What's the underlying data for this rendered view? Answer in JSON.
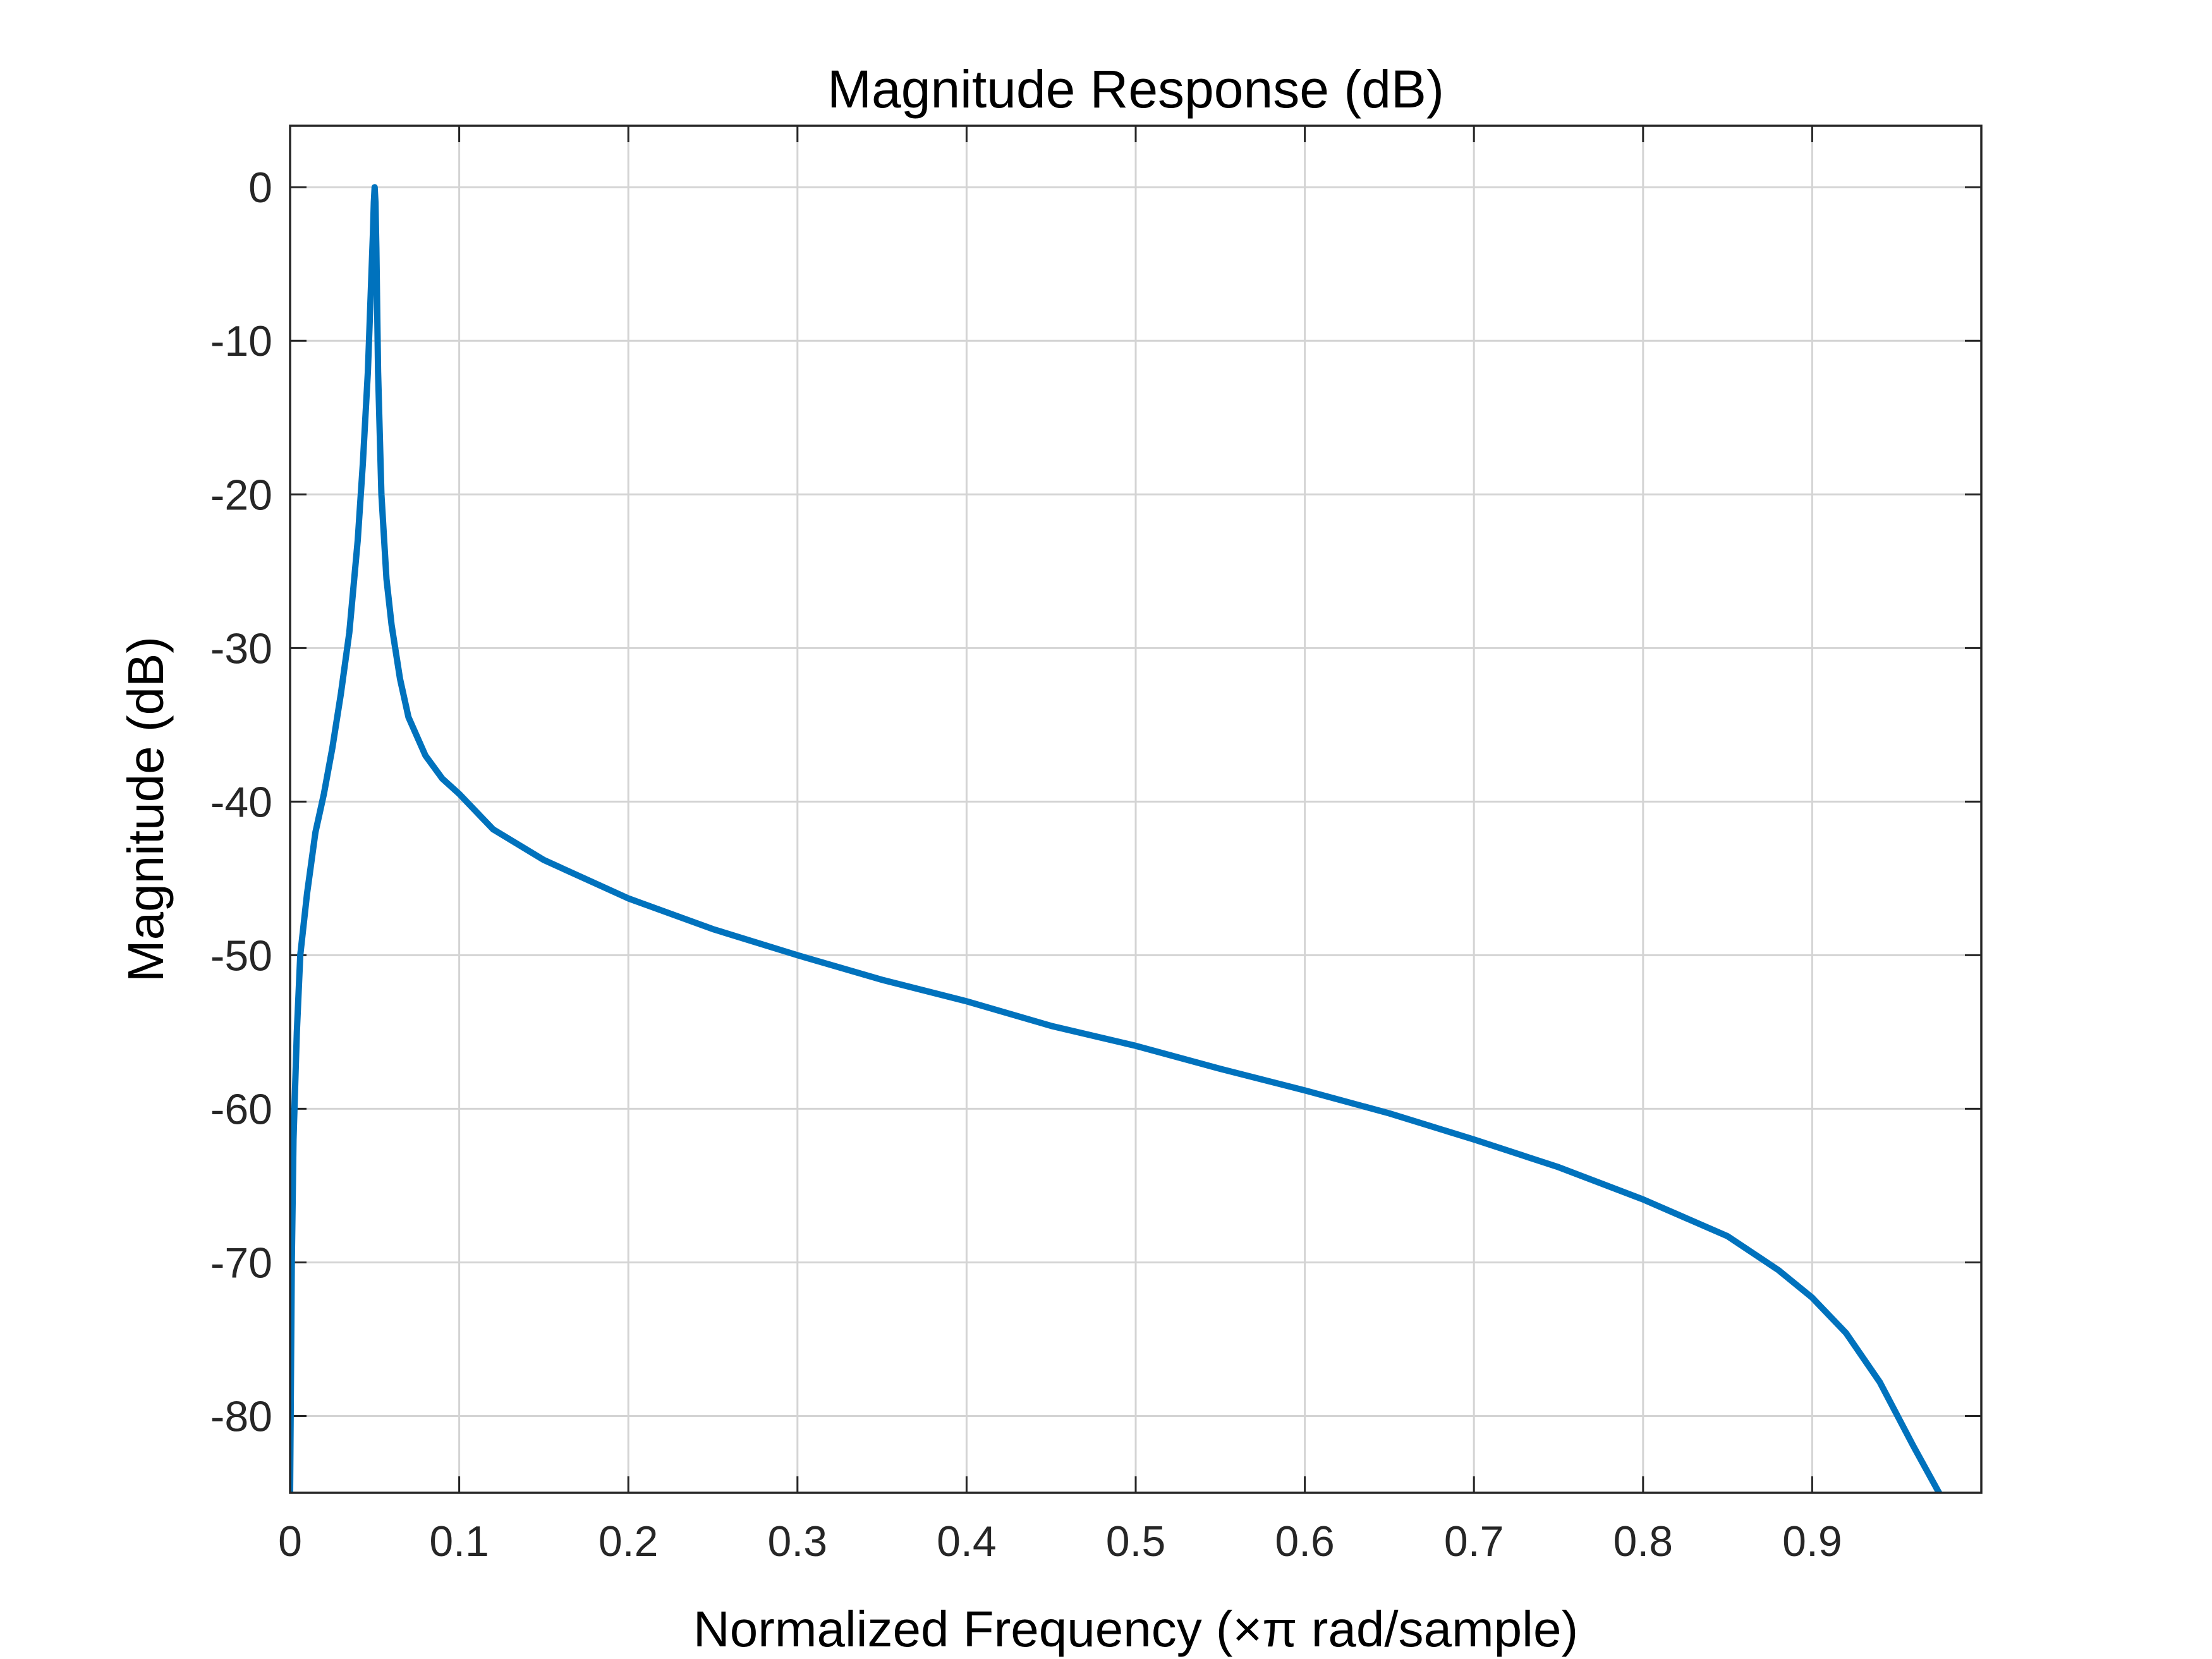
{
  "chart_data": {
    "type": "line",
    "title": "Magnitude Response (dB)",
    "xlabel": "Normalized Frequency (×π rad/sample)",
    "ylabel": "Magnitude (dB)",
    "xlim": [
      0,
      1
    ],
    "ylim": [
      -85,
      4
    ],
    "xticks": [
      0,
      0.1,
      0.2,
      0.3,
      0.4,
      0.5,
      0.6,
      0.7,
      0.8,
      0.9
    ],
    "xtick_labels": [
      "0",
      "0.1",
      "0.2",
      "0.3",
      "0.4",
      "0.5",
      "0.6",
      "0.7",
      "0.8",
      "0.9"
    ],
    "yticks": [
      0,
      -10,
      -20,
      -30,
      -40,
      -50,
      -60,
      -70,
      -80
    ],
    "ytick_labels": [
      "0",
      "-10",
      "-20",
      "-30",
      "-40",
      "-50",
      "-60",
      "-70",
      "-80"
    ],
    "grid": true,
    "line_color": "#0072bd",
    "series": [
      {
        "x": [
          0,
          0.001,
          0.002,
          0.004,
          0.006,
          0.01,
          0.015,
          0.02,
          0.025,
          0.03,
          0.035,
          0.04,
          0.043,
          0.046,
          0.048,
          0.049,
          0.0495,
          0.05,
          0.0505,
          0.051,
          0.052,
          0.054,
          0.057,
          0.06,
          0.065,
          0.07,
          0.08,
          0.09,
          0.1,
          0.12,
          0.15,
          0.2,
          0.25,
          0.3,
          0.35,
          0.4,
          0.45,
          0.5,
          0.55,
          0.6,
          0.65,
          0.7,
          0.75,
          0.8,
          0.85,
          0.88,
          0.9,
          0.92,
          0.94,
          0.96,
          0.975
        ],
        "y": [
          -85,
          -70,
          -62,
          -55,
          -50,
          -46,
          -42,
          -39.5,
          -36.5,
          -33,
          -29,
          -23,
          -18,
          -12,
          -6,
          -3,
          -1,
          0,
          -1,
          -4,
          -12,
          -20,
          -25.5,
          -28.5,
          -32,
          -34.5,
          -37,
          -38.5,
          -39.5,
          -41.8,
          -43.8,
          -46.3,
          -48.3,
          -50,
          -51.6,
          -53,
          -54.6,
          -55.9,
          -57.4,
          -58.8,
          -60.3,
          -62,
          -63.8,
          -65.9,
          -68.3,
          -70.5,
          -72.3,
          -74.6,
          -77.8,
          -82,
          -85
        ]
      }
    ]
  }
}
